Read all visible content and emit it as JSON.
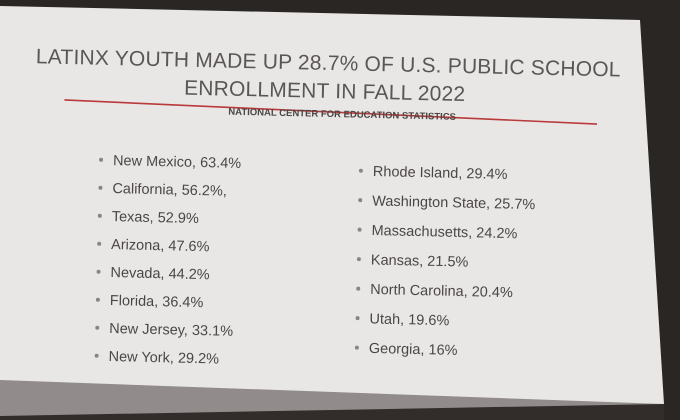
{
  "slide": {
    "title_lines": [
      "LATINX YOUTH MADE UP 28.7% OF U.S. PUBLIC SCHOOL",
      "ENROLLMENT IN FALL 2022"
    ],
    "subtitle": "NATIONAL CENTER FOR EDUCATION STATISTICS",
    "left_list": [
      "New Mexico, 63.4%",
      "California, 56.2%,",
      "Texas, 52.9%",
      "Arizona, 47.6%",
      "Nevada, 44.2%",
      "Florida, 36.4%",
      "New Jersey, 33.1%",
      "New York, 29.2%"
    ],
    "right_list": [
      "Rhode Island, 29.4%",
      "Washington State, 25.7%",
      "Massachusetts, 24.2%",
      "Kansas, 21.5%",
      "North Carolina, 20.4%",
      "Utah, 19.6%",
      "Georgia, 16%"
    ]
  }
}
